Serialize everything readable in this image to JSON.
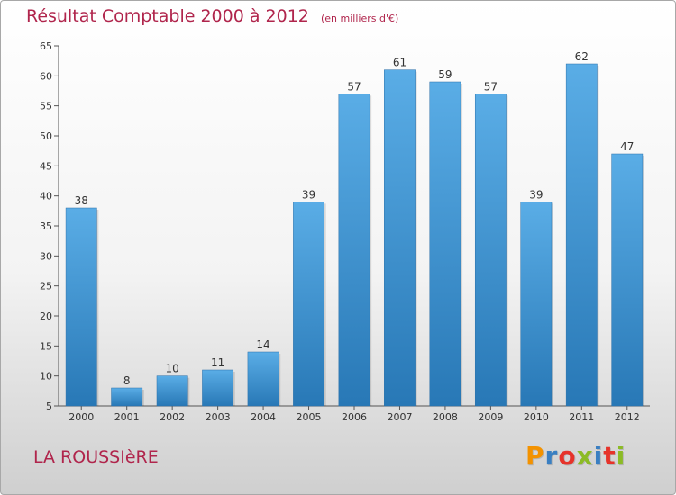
{
  "chart_data": {
    "type": "bar",
    "title": "Résultat Comptable 2000 à 2012",
    "subtitle": "(en milliers d'€)",
    "categories": [
      "2000",
      "2001",
      "2002",
      "2003",
      "2004",
      "2005",
      "2006",
      "2007",
      "2008",
      "2009",
      "2010",
      "2011",
      "2012"
    ],
    "values": [
      38,
      8,
      10,
      11,
      14,
      39,
      57,
      61,
      59,
      57,
      39,
      62,
      47
    ],
    "ylim": [
      5,
      65
    ],
    "yticks": [
      5,
      10,
      15,
      20,
      25,
      30,
      35,
      40,
      45,
      50,
      55,
      60,
      65
    ],
    "xlabel": "",
    "ylabel": "",
    "grid": false,
    "legend": "none",
    "bar_color_top": "#5aade6",
    "bar_color_bottom": "#2878b6"
  },
  "footer": {
    "commune": "LA ROUSSIèRE",
    "brand_letters": [
      "P",
      "r",
      "o",
      "x",
      "i",
      "t",
      "i"
    ],
    "brand_colors": [
      "#f39200",
      "#3a7fc2",
      "#e6332a",
      "#8cbb25",
      "#3a7fc2",
      "#e6332a",
      "#8cbb25"
    ]
  },
  "colors": {
    "title": "#b0254c",
    "axis": "#555555"
  }
}
